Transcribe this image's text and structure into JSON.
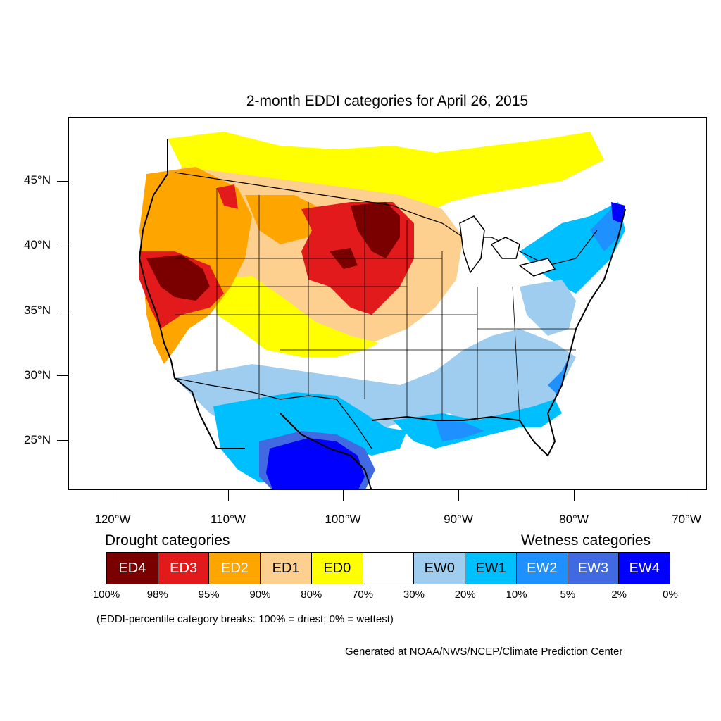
{
  "map": {
    "title": "2-month EDDI categories for April 26, 2015",
    "lat_ticks": [
      "45°N",
      "40°N",
      "35°N",
      "30°N",
      "25°N"
    ],
    "lon_ticks": [
      "120°W",
      "110°W",
      "100°W",
      "90°W",
      "80°W",
      "70°W"
    ]
  },
  "legend": {
    "drought_heading": "Drought categories",
    "wetness_heading": "Wetness categories",
    "categories": [
      {
        "label": "ED4",
        "color": "#7a0000",
        "text_color": "#ffffff"
      },
      {
        "label": "ED3",
        "color": "#e31a1c",
        "text_color": "#ffffff"
      },
      {
        "label": "ED2",
        "color": "#ffa500",
        "text_color": "#ffffff"
      },
      {
        "label": "ED1",
        "color": "#fdd08f",
        "text_color": "#000000"
      },
      {
        "label": "ED0",
        "color": "#ffff00",
        "text_color": "#000000"
      },
      {
        "label": "",
        "color": "#ffffff",
        "text_color": "#000000"
      },
      {
        "label": "EW0",
        "color": "#9ecdf0",
        "text_color": "#000000"
      },
      {
        "label": "EW1",
        "color": "#00bfff",
        "text_color": "#000000"
      },
      {
        "label": "EW2",
        "color": "#1e90ff",
        "text_color": "#ffffff"
      },
      {
        "label": "EW3",
        "color": "#4169e1",
        "text_color": "#ffffff"
      },
      {
        "label": "EW4",
        "color": "#0000ff",
        "text_color": "#ffffff"
      }
    ],
    "breaks": [
      "100%",
      "98%",
      "95%",
      "90%",
      "80%",
      "70%",
      "30%",
      "20%",
      "10%",
      "5%",
      "2%",
      "0%"
    ]
  },
  "note": "(EDDI-percentile category breaks: 100% = driest; 0% = wettest)",
  "credit": "Generated at NOAA/NWS/NCEP/Climate Prediction Center"
}
